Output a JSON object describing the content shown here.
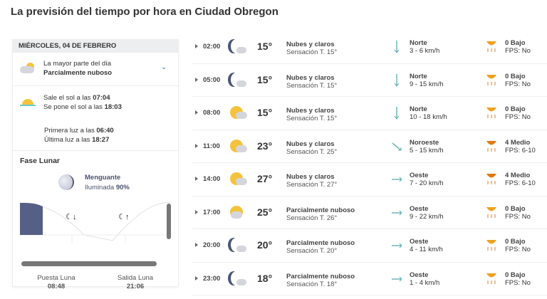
{
  "title": "La previsión del tiempo por hora en Ciudad Obregon",
  "day": {
    "header": "MIÉRCOLES, 04 DE FEBRERO",
    "summary_label": "La mayor parte del día",
    "summary_value": "Parcialmente nuboso",
    "sunrise_label": "Sale el sol a las",
    "sunrise": "07:04",
    "sunset_label": "Se pone el sol a las",
    "sunset": "18:03",
    "first_light_label": "Primera luz a las",
    "first_light": "06:40",
    "last_light_label": "Última luz a las",
    "last_light": "18:27"
  },
  "moon": {
    "title": "Fase Lunar",
    "phase": "Menguante",
    "illum_label": "Iluminada",
    "illum": "90%",
    "set_label": "Puesta Luna",
    "set": "08:48",
    "rise_label": "Salida Luna",
    "rise": "21:06"
  },
  "hours": [
    {
      "time": "02:00",
      "icon": "moon-cloud",
      "temp": "15°",
      "desc": "Nubes y claros",
      "feel": "Sensación T. 15°",
      "dir": "Norte",
      "speed": "3  - 6 km/h",
      "uv": "0 Bajo",
      "fps": "FPS: No",
      "uvcolor": "#f0a020"
    },
    {
      "time": "05:00",
      "icon": "moon-cloud",
      "temp": "15°",
      "desc": "Nubes y claros",
      "feel": "Sensación T. 15°",
      "dir": "Norte",
      "speed": "9  - 15 km/h",
      "uv": "0 Bajo",
      "fps": "FPS: No",
      "uvcolor": "#f0a020"
    },
    {
      "time": "08:00",
      "icon": "sun-cloud",
      "temp": "15°",
      "desc": "Nubes y claros",
      "feel": "Sensación T. 15°",
      "dir": "Norte",
      "speed": "10  - 18 km/h",
      "uv": "0 Bajo",
      "fps": "FPS: No",
      "uvcolor": "#f0a020"
    },
    {
      "time": "11:00",
      "icon": "sun-cloud",
      "temp": "23°",
      "desc": "Nubes y claros",
      "feel": "Sensación T. 25°",
      "dir": "Noroeste",
      "speed": "5  - 15 km/h",
      "uv": "4 Medio",
      "fps": "FPS: 6-10",
      "uvcolor": "#e07a10"
    },
    {
      "time": "14:00",
      "icon": "sun-cloud",
      "temp": "27°",
      "desc": "Nubes y claros",
      "feel": "Sensación T. 27°",
      "dir": "Oeste",
      "speed": "7  - 20 km/h",
      "uv": "4 Medio",
      "fps": "FPS: 6-10",
      "uvcolor": "#e07a10"
    },
    {
      "time": "17:00",
      "icon": "sun-cloud-partly",
      "temp": "25°",
      "desc": "Parcialmente nuboso",
      "feel": "Sensación T. 26°",
      "dir": "Oeste",
      "speed": "9  - 22 km/h",
      "uv": "0 Bajo",
      "fps": "FPS: No",
      "uvcolor": "#f0a020"
    },
    {
      "time": "20:00",
      "icon": "moon-cloud-partly",
      "temp": "20°",
      "desc": "Parcialmente nuboso",
      "feel": "Sensación T. 20°",
      "dir": "Oeste",
      "speed": "4  - 11 km/h",
      "uv": "0 Bajo",
      "fps": "FPS: No",
      "uvcolor": "#f0a020"
    },
    {
      "time": "23:00",
      "icon": "moon-cloud-partly",
      "temp": "18°",
      "desc": "Parcialmente nuboso",
      "feel": "Sensación T. 18°",
      "dir": "Oeste",
      "speed": "1  - 4 km/h",
      "uv": "0 Bajo",
      "fps": "FPS: No",
      "uvcolor": "#f0a020"
    }
  ]
}
